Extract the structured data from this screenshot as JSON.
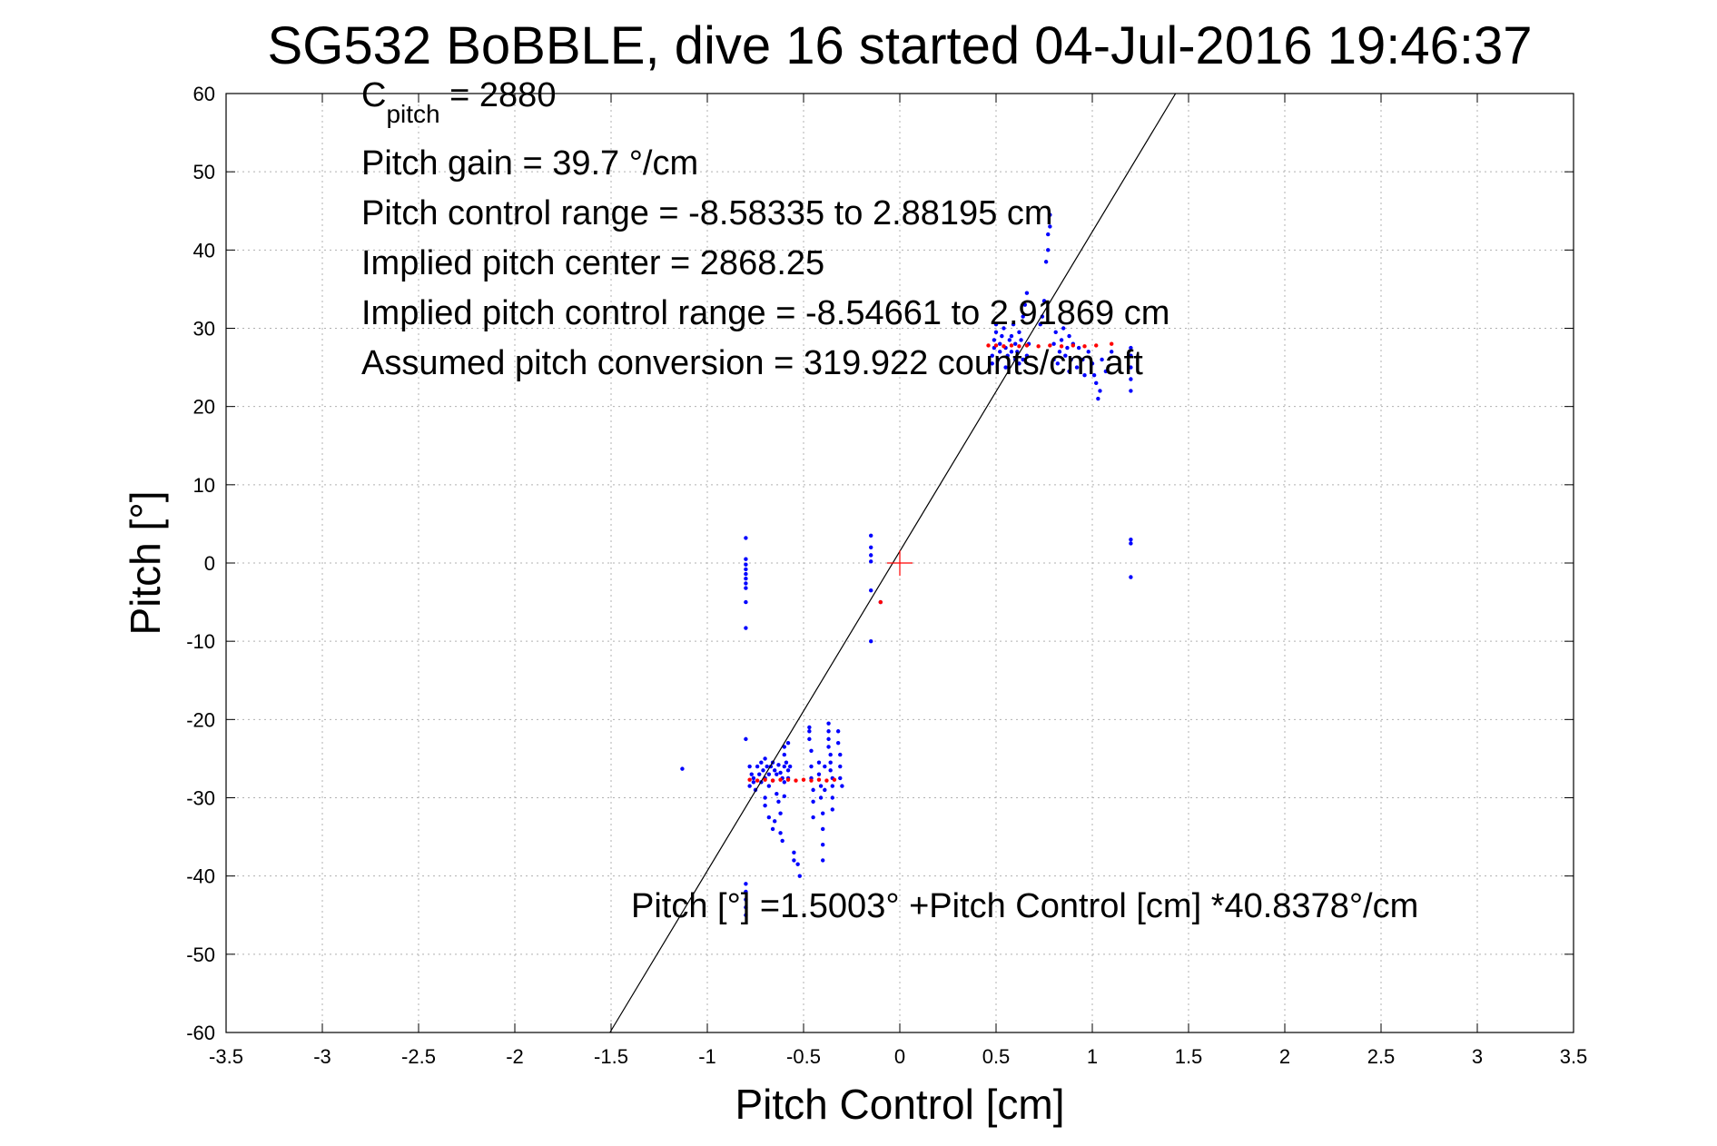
{
  "chart_data": {
    "type": "scatter",
    "title": "SG532 BoBBLE, dive 16 started 04-Jul-2016 19:46:37",
    "xlabel": "Pitch Control [cm]",
    "ylabel": "Pitch [°]",
    "xlim": [
      -3.5,
      3.5
    ],
    "ylim": [
      -60,
      60
    ],
    "xticks": [
      "-3.5",
      "-3",
      "-2.5",
      "-2",
      "-1.5",
      "-1",
      "-0.5",
      "0",
      "0.5",
      "1",
      "1.5",
      "2",
      "2.5",
      "3",
      "3.5"
    ],
    "yticks": [
      "-60",
      "-50",
      "-40",
      "-30",
      "-20",
      "-10",
      "0",
      "10",
      "20",
      "30",
      "40",
      "50",
      "60"
    ],
    "grid": true,
    "colors": {
      "observed": "#0000ff",
      "fitted": "#ff0000",
      "fit_line": "#000000",
      "grid": "#b0b0b0"
    },
    "annotations": {
      "c_pitch_main": "C",
      "c_pitch_sub": "pitch",
      "c_pitch_value": " = 2880",
      "pitch_gain": "Pitch gain = 39.7 °/cm",
      "control_range": "Pitch control range = -8.58335 to 2.88195 cm",
      "implied_center": "Implied pitch center = 2868.25",
      "implied_range": "Implied pitch control range = -8.54661 to 2.91869 cm",
      "conversion": "Assumed pitch conversion = 319.922 counts/cm aft",
      "fit_equation": "Pitch [°] =1.5003° +Pitch Control [cm] *40.8378°/cm"
    },
    "fit_line": {
      "intercept": 1.5003,
      "slope": 40.8378
    },
    "center_marker": {
      "x": 0,
      "y": 0
    },
    "observed_points": [
      [
        -0.8,
        3.2
      ],
      [
        -0.8,
        0.5
      ],
      [
        -0.8,
        -0.2
      ],
      [
        -0.8,
        -0.8
      ],
      [
        -0.8,
        -1.4
      ],
      [
        -0.8,
        -2.0
      ],
      [
        -0.8,
        -2.6
      ],
      [
        -0.8,
        -3.2
      ],
      [
        -0.8,
        -5.0
      ],
      [
        -0.8,
        -8.3
      ],
      [
        -0.15,
        3.5
      ],
      [
        -0.15,
        2.0
      ],
      [
        -0.15,
        1.0
      ],
      [
        -0.15,
        0.2
      ],
      [
        -0.15,
        -3.5
      ],
      [
        -0.15,
        -10.0
      ],
      [
        -0.1,
        -5.0
      ],
      [
        1.2,
        3.0
      ],
      [
        1.2,
        2.5
      ],
      [
        1.2,
        -1.8
      ],
      [
        -1.13,
        -26.3
      ],
      [
        -0.8,
        -22.5
      ],
      [
        -0.8,
        -41.0
      ],
      [
        -0.8,
        -42.0
      ],
      [
        -0.8,
        -43.0
      ],
      [
        -0.8,
        -44.0
      ],
      [
        -0.8,
        -45.0
      ],
      [
        -0.78,
        -26.0
      ],
      [
        -0.77,
        -27.0
      ],
      [
        -0.76,
        -28.0
      ],
      [
        -0.75,
        -29.0
      ],
      [
        -0.76,
        -27.5
      ],
      [
        -0.78,
        -28.5
      ],
      [
        -0.74,
        -26.0
      ],
      [
        -0.73,
        -27.0
      ],
      [
        -0.72,
        -25.5
      ],
      [
        -0.72,
        -28.0
      ],
      [
        -0.71,
        -26.5
      ],
      [
        -0.7,
        -27.5
      ],
      [
        -0.7,
        -25.0
      ],
      [
        -0.69,
        -26.0
      ],
      [
        -0.68,
        -27.0
      ],
      [
        -0.68,
        -28.5
      ],
      [
        -0.67,
        -26.0
      ],
      [
        -0.66,
        -25.5
      ],
      [
        -0.66,
        -27.8
      ],
      [
        -0.65,
        -26.5
      ],
      [
        -0.64,
        -27.0
      ],
      [
        -0.63,
        -25.8
      ],
      [
        -0.62,
        -26.8
      ],
      [
        -0.61,
        -27.5
      ],
      [
        -0.6,
        -26.0
      ],
      [
        -0.6,
        -28.0
      ],
      [
        -0.59,
        -25.5
      ],
      [
        -0.58,
        -26.5
      ],
      [
        -0.58,
        -27.5
      ],
      [
        -0.57,
        -26.0
      ],
      [
        -0.7,
        -30.0
      ],
      [
        -0.7,
        -31.0
      ],
      [
        -0.68,
        -32.5
      ],
      [
        -0.66,
        -34.0
      ],
      [
        -0.65,
        -33.0
      ],
      [
        -0.64,
        -29.5
      ],
      [
        -0.63,
        -30.5
      ],
      [
        -0.62,
        -32.0
      ],
      [
        -0.62,
        -34.5
      ],
      [
        -0.61,
        -35.5
      ],
      [
        -0.6,
        -29.8
      ],
      [
        -0.6,
        -23.5
      ],
      [
        -0.6,
        -24.5
      ],
      [
        -0.58,
        -23.0
      ],
      [
        -0.55,
        -37.0
      ],
      [
        -0.55,
        -38.0
      ],
      [
        -0.53,
        -38.5
      ],
      [
        -0.52,
        -40.0
      ],
      [
        -0.47,
        -21.0
      ],
      [
        -0.47,
        -21.5
      ],
      [
        -0.47,
        -22.5
      ],
      [
        -0.46,
        -24.0
      ],
      [
        -0.46,
        -26.0
      ],
      [
        -0.46,
        -27.5
      ],
      [
        -0.45,
        -29.0
      ],
      [
        -0.45,
        -30.5
      ],
      [
        -0.45,
        -32.5
      ],
      [
        -0.42,
        -25.5
      ],
      [
        -0.42,
        -27.0
      ],
      [
        -0.41,
        -28.5
      ],
      [
        -0.41,
        -30.0
      ],
      [
        -0.4,
        -32.0
      ],
      [
        -0.4,
        -34.0
      ],
      [
        -0.4,
        -36.0
      ],
      [
        -0.4,
        -38.0
      ],
      [
        -0.39,
        -26.0
      ],
      [
        -0.39,
        -29.0
      ],
      [
        -0.37,
        -20.5
      ],
      [
        -0.37,
        -21.5
      ],
      [
        -0.37,
        -22.5
      ],
      [
        -0.37,
        -23.5
      ],
      [
        -0.36,
        -24.5
      ],
      [
        -0.36,
        -25.5
      ],
      [
        -0.36,
        -26.5
      ],
      [
        -0.35,
        -27.5
      ],
      [
        -0.35,
        -28.5
      ],
      [
        -0.35,
        -30.0
      ],
      [
        -0.35,
        -31.5
      ],
      [
        -0.32,
        -21.5
      ],
      [
        -0.32,
        -23.0
      ],
      [
        -0.31,
        -24.5
      ],
      [
        -0.31,
        -26.0
      ],
      [
        -0.31,
        -27.5
      ],
      [
        -0.3,
        -28.5
      ],
      [
        0.48,
        25.5
      ],
      [
        0.48,
        26.5
      ],
      [
        0.49,
        27.5
      ],
      [
        0.49,
        28.5
      ],
      [
        0.5,
        29.5
      ],
      [
        0.5,
        30.5
      ],
      [
        0.51,
        26.0
      ],
      [
        0.52,
        27.0
      ],
      [
        0.52,
        28.0
      ],
      [
        0.53,
        29.0
      ],
      [
        0.54,
        30.0
      ],
      [
        0.55,
        25.0
      ],
      [
        0.55,
        27.5
      ],
      [
        0.56,
        26.5
      ],
      [
        0.57,
        28.5
      ],
      [
        0.58,
        27.0
      ],
      [
        0.58,
        29.0
      ],
      [
        0.59,
        30.5
      ],
      [
        0.6,
        26.0
      ],
      [
        0.6,
        28.0
      ],
      [
        0.61,
        27.0
      ],
      [
        0.62,
        25.5
      ],
      [
        0.62,
        29.5
      ],
      [
        0.63,
        28.5
      ],
      [
        0.64,
        26.0
      ],
      [
        0.64,
        31.5
      ],
      [
        0.65,
        33.0
      ],
      [
        0.66,
        34.5
      ],
      [
        0.66,
        26.5
      ],
      [
        0.67,
        28.0
      ],
      [
        0.73,
        30.5
      ],
      [
        0.74,
        31.5
      ],
      [
        0.75,
        33.5
      ],
      [
        0.76,
        38.5
      ],
      [
        0.77,
        40.0
      ],
      [
        0.77,
        42.0
      ],
      [
        0.78,
        43.0
      ],
      [
        0.78,
        44.5
      ],
      [
        0.8,
        26.0
      ],
      [
        0.8,
        28.0
      ],
      [
        0.81,
        29.5
      ],
      [
        0.82,
        25.5
      ],
      [
        0.83,
        27.0
      ],
      [
        0.84,
        28.5
      ],
      [
        0.85,
        30.0
      ],
      [
        0.86,
        26.5
      ],
      [
        0.87,
        27.5
      ],
      [
        0.88,
        29.0
      ],
      [
        0.88,
        24.5
      ],
      [
        0.89,
        26.0
      ],
      [
        0.9,
        28.0
      ],
      [
        0.92,
        25.0
      ],
      [
        0.93,
        27.5
      ],
      [
        0.95,
        26.0
      ],
      [
        0.96,
        24.0
      ],
      [
        0.98,
        27.0
      ],
      [
        1.0,
        25.5
      ],
      [
        1.01,
        24.0
      ],
      [
        1.02,
        23.0
      ],
      [
        1.03,
        21.0
      ],
      [
        1.04,
        22.0
      ],
      [
        1.05,
        26.0
      ],
      [
        1.07,
        24.5
      ],
      [
        1.1,
        27.0
      ],
      [
        1.2,
        22.0
      ],
      [
        1.2,
        23.5
      ],
      [
        1.2,
        25.0
      ],
      [
        1.2,
        26.5
      ],
      [
        1.2,
        27.5
      ]
    ],
    "fitted_points": [
      [
        -0.78,
        -27.7
      ],
      [
        -0.74,
        -27.8
      ],
      [
        -0.7,
        -27.7
      ],
      [
        -0.66,
        -27.8
      ],
      [
        -0.62,
        -27.7
      ],
      [
        -0.58,
        -27.7
      ],
      [
        -0.54,
        -27.8
      ],
      [
        -0.5,
        -27.7
      ],
      [
        -0.46,
        -27.8
      ],
      [
        -0.42,
        -27.7
      ],
      [
        -0.38,
        -27.8
      ],
      [
        -0.34,
        -27.7
      ],
      [
        -0.1,
        -5.0
      ],
      [
        0.46,
        27.8
      ],
      [
        0.5,
        27.8
      ],
      [
        0.54,
        27.7
      ],
      [
        0.58,
        27.8
      ],
      [
        0.62,
        27.7
      ],
      [
        0.66,
        27.8
      ],
      [
        0.72,
        27.7
      ],
      [
        0.78,
        27.8
      ],
      [
        0.84,
        27.7
      ],
      [
        0.9,
        27.8
      ],
      [
        0.96,
        27.7
      ],
      [
        1.02,
        27.8
      ],
      [
        1.1,
        28.0
      ]
    ]
  }
}
